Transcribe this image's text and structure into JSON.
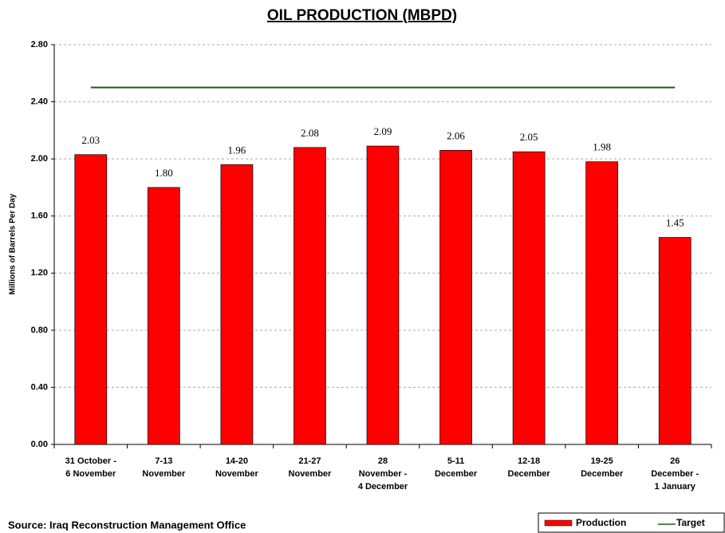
{
  "chart_data": {
    "type": "bar",
    "title": "OIL PRODUCTION (MBPD)",
    "y_label": "Millions of Barrels Per Day",
    "source": "Source: Iraq Reconstruction Management Office",
    "categories": [
      [
        "31 October -",
        "6 November"
      ],
      [
        "7-13",
        "November"
      ],
      [
        "14-20",
        "November"
      ],
      [
        "21-27",
        "November"
      ],
      [
        "28",
        "November -",
        "4 December"
      ],
      [
        "5-11",
        "December"
      ],
      [
        "12-18",
        "December"
      ],
      [
        "19-25",
        "December"
      ],
      [
        "26",
        "December -",
        "1 January"
      ]
    ],
    "series": [
      {
        "name": "Production",
        "color": "#ff0000",
        "values": [
          2.03,
          1.8,
          1.96,
          2.08,
          2.09,
          2.06,
          2.05,
          1.98,
          1.45
        ],
        "value_labels": [
          "2.03",
          "1.80",
          "1.96",
          "2.08",
          "2.09",
          "2.06",
          "2.05",
          "1.98",
          "1.45"
        ]
      },
      {
        "name": "Target",
        "type": "line",
        "color": "#1a5e1a",
        "values": [
          2.5,
          2.5,
          2.5,
          2.5,
          2.5,
          2.5,
          2.5,
          2.5,
          2.5
        ]
      }
    ],
    "ylim": [
      0,
      2.8
    ],
    "yticks": [
      {
        "value": 0,
        "label": "0.00"
      },
      {
        "value": 0.4,
        "label": "0.40"
      },
      {
        "value": 0.8,
        "label": "0.80"
      },
      {
        "value": 1.2,
        "label": "1.20"
      },
      {
        "value": 1.6,
        "label": "1.60"
      },
      {
        "value": 2,
        "label": "2.00"
      },
      {
        "value": 2.4,
        "label": "2.40"
      },
      {
        "value": 2.8,
        "label": "2.80"
      }
    ],
    "grid": true
  }
}
